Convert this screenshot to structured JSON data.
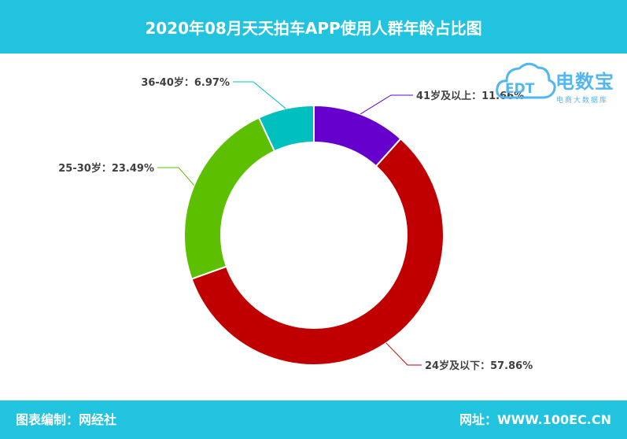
{
  "header": {
    "title": "2020年08月天天拍车APP使用人群年龄占比图"
  },
  "footer": {
    "left": "图表编制：网经社",
    "right": "网址：WWW.100EC.CN"
  },
  "logo": {
    "name": "电数宝",
    "subtitle": "电商大数据库",
    "mark_text": "EDT"
  },
  "colors": {
    "band": "#21c3de",
    "logo": "#52b6f0"
  },
  "chart_data": {
    "type": "pie",
    "style": "donut",
    "labels": [
      "41岁及以上：11.66%",
      "24岁及以下：57.86%",
      "25-30岁：23.49%",
      "36-40岁：6.97%"
    ],
    "categories": [
      "41岁及以上",
      "24岁及以下",
      "25-30岁",
      "36-40岁"
    ],
    "values": [
      11.66,
      57.86,
      23.49,
      6.97
    ],
    "colors": [
      "#6600cc",
      "#c00000",
      "#5cbf00",
      "#00bfbf"
    ],
    "start": "top",
    "direction": "clockwise"
  }
}
